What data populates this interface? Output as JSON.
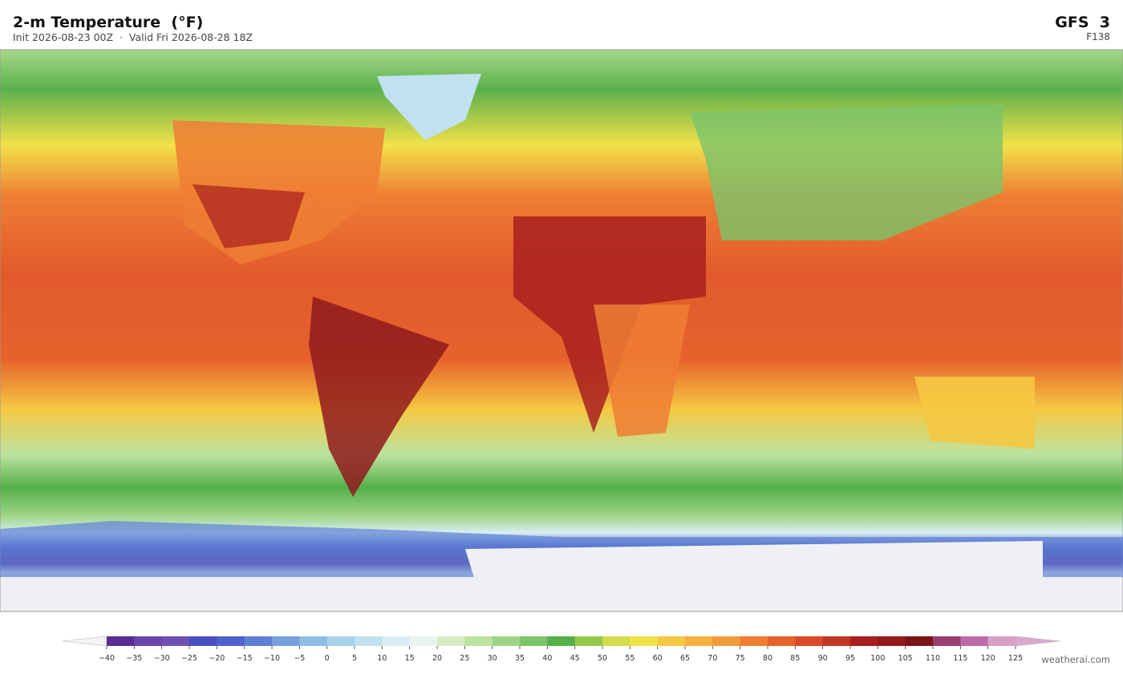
{
  "header": {
    "title": "2-m Temperature  (°F)",
    "subtitle": "Init 2026-08-23 00Z  ·  Valid Fri 2026-08-28 18Z",
    "model": "GFS  3",
    "forecast_hour": "F138"
  },
  "colorbar": {
    "ticks": [
      {
        "value": -40,
        "label": "−40"
      },
      {
        "value": -35,
        "label": "−35"
      },
      {
        "value": -30,
        "label": "−30"
      },
      {
        "value": -25,
        "label": "−25"
      },
      {
        "value": -20,
        "label": "−20"
      },
      {
        "value": -15,
        "label": "−15"
      },
      {
        "value": -10,
        "label": "−10"
      },
      {
        "value": -5,
        "label": "−5"
      },
      0,
      5,
      10,
      15,
      20,
      25,
      30,
      35,
      40,
      45,
      50,
      55,
      60,
      65,
      70,
      75,
      80,
      85,
      90,
      95,
      100,
      105,
      110,
      115,
      120,
      125
    ],
    "colors": [
      "#5a2d91",
      "#6a46a8",
      "#7150b4",
      "#4a4fc0",
      "#4f62cc",
      "#5e80d4",
      "#77a0dc",
      "#8fbde4",
      "#a8d2ec",
      "#c0e2f0",
      "#d8eef4",
      "#e8f4ee",
      "#d5ecc4",
      "#bde3a0",
      "#9fd487",
      "#7cc46a",
      "#55b04a",
      "#94c84c",
      "#d4dc4a",
      "#f2e24a",
      "#f5c842",
      "#f5b040",
      "#f29a3c",
      "#ee7e34",
      "#e6622c",
      "#d84a28",
      "#c23424",
      "#a8201e",
      "#901a1c",
      "#7a1418",
      "#9a4070",
      "#bc6aa8",
      "#d8a0c8"
    ],
    "under_color": "#f4f4f6",
    "over_color": "#dca8d0"
  },
  "footer": "weatherai.com"
}
